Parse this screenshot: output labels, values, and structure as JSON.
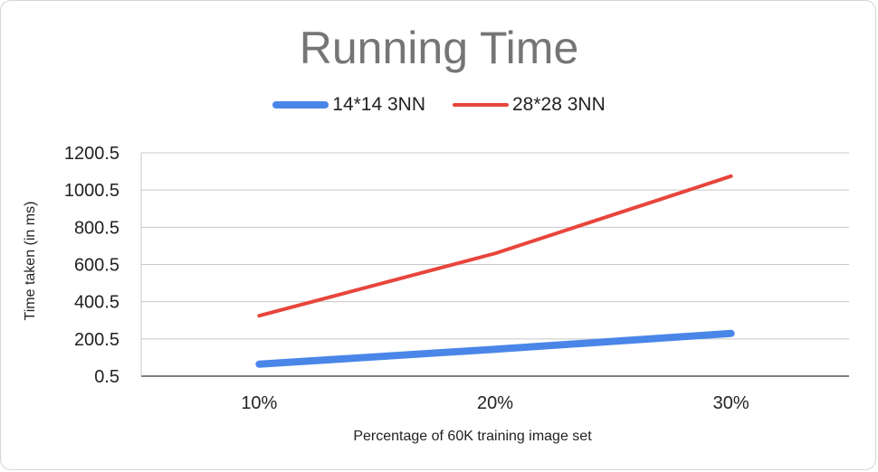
{
  "chart_data": {
    "type": "line",
    "title": "Running Time",
    "xlabel": "Percentage of 60K training image set",
    "ylabel": "Time taken (in ms)",
    "categories": [
      "10%",
      "20%",
      "30%"
    ],
    "yticks": [
      "0.5",
      "200.5",
      "400.5",
      "600.5",
      "800.5",
      "1000.5",
      "1200.5"
    ],
    "ylim": [
      0.5,
      1200.5
    ],
    "grid": true,
    "legend_position": "top",
    "series": [
      {
        "name": "14*14 3NN",
        "color": "#4a86e8",
        "values": [
          65,
          145,
          230
        ]
      },
      {
        "name": "28*28 3NN",
        "color": "#e8453c",
        "values": [
          325,
          660,
          1075
        ]
      }
    ]
  }
}
